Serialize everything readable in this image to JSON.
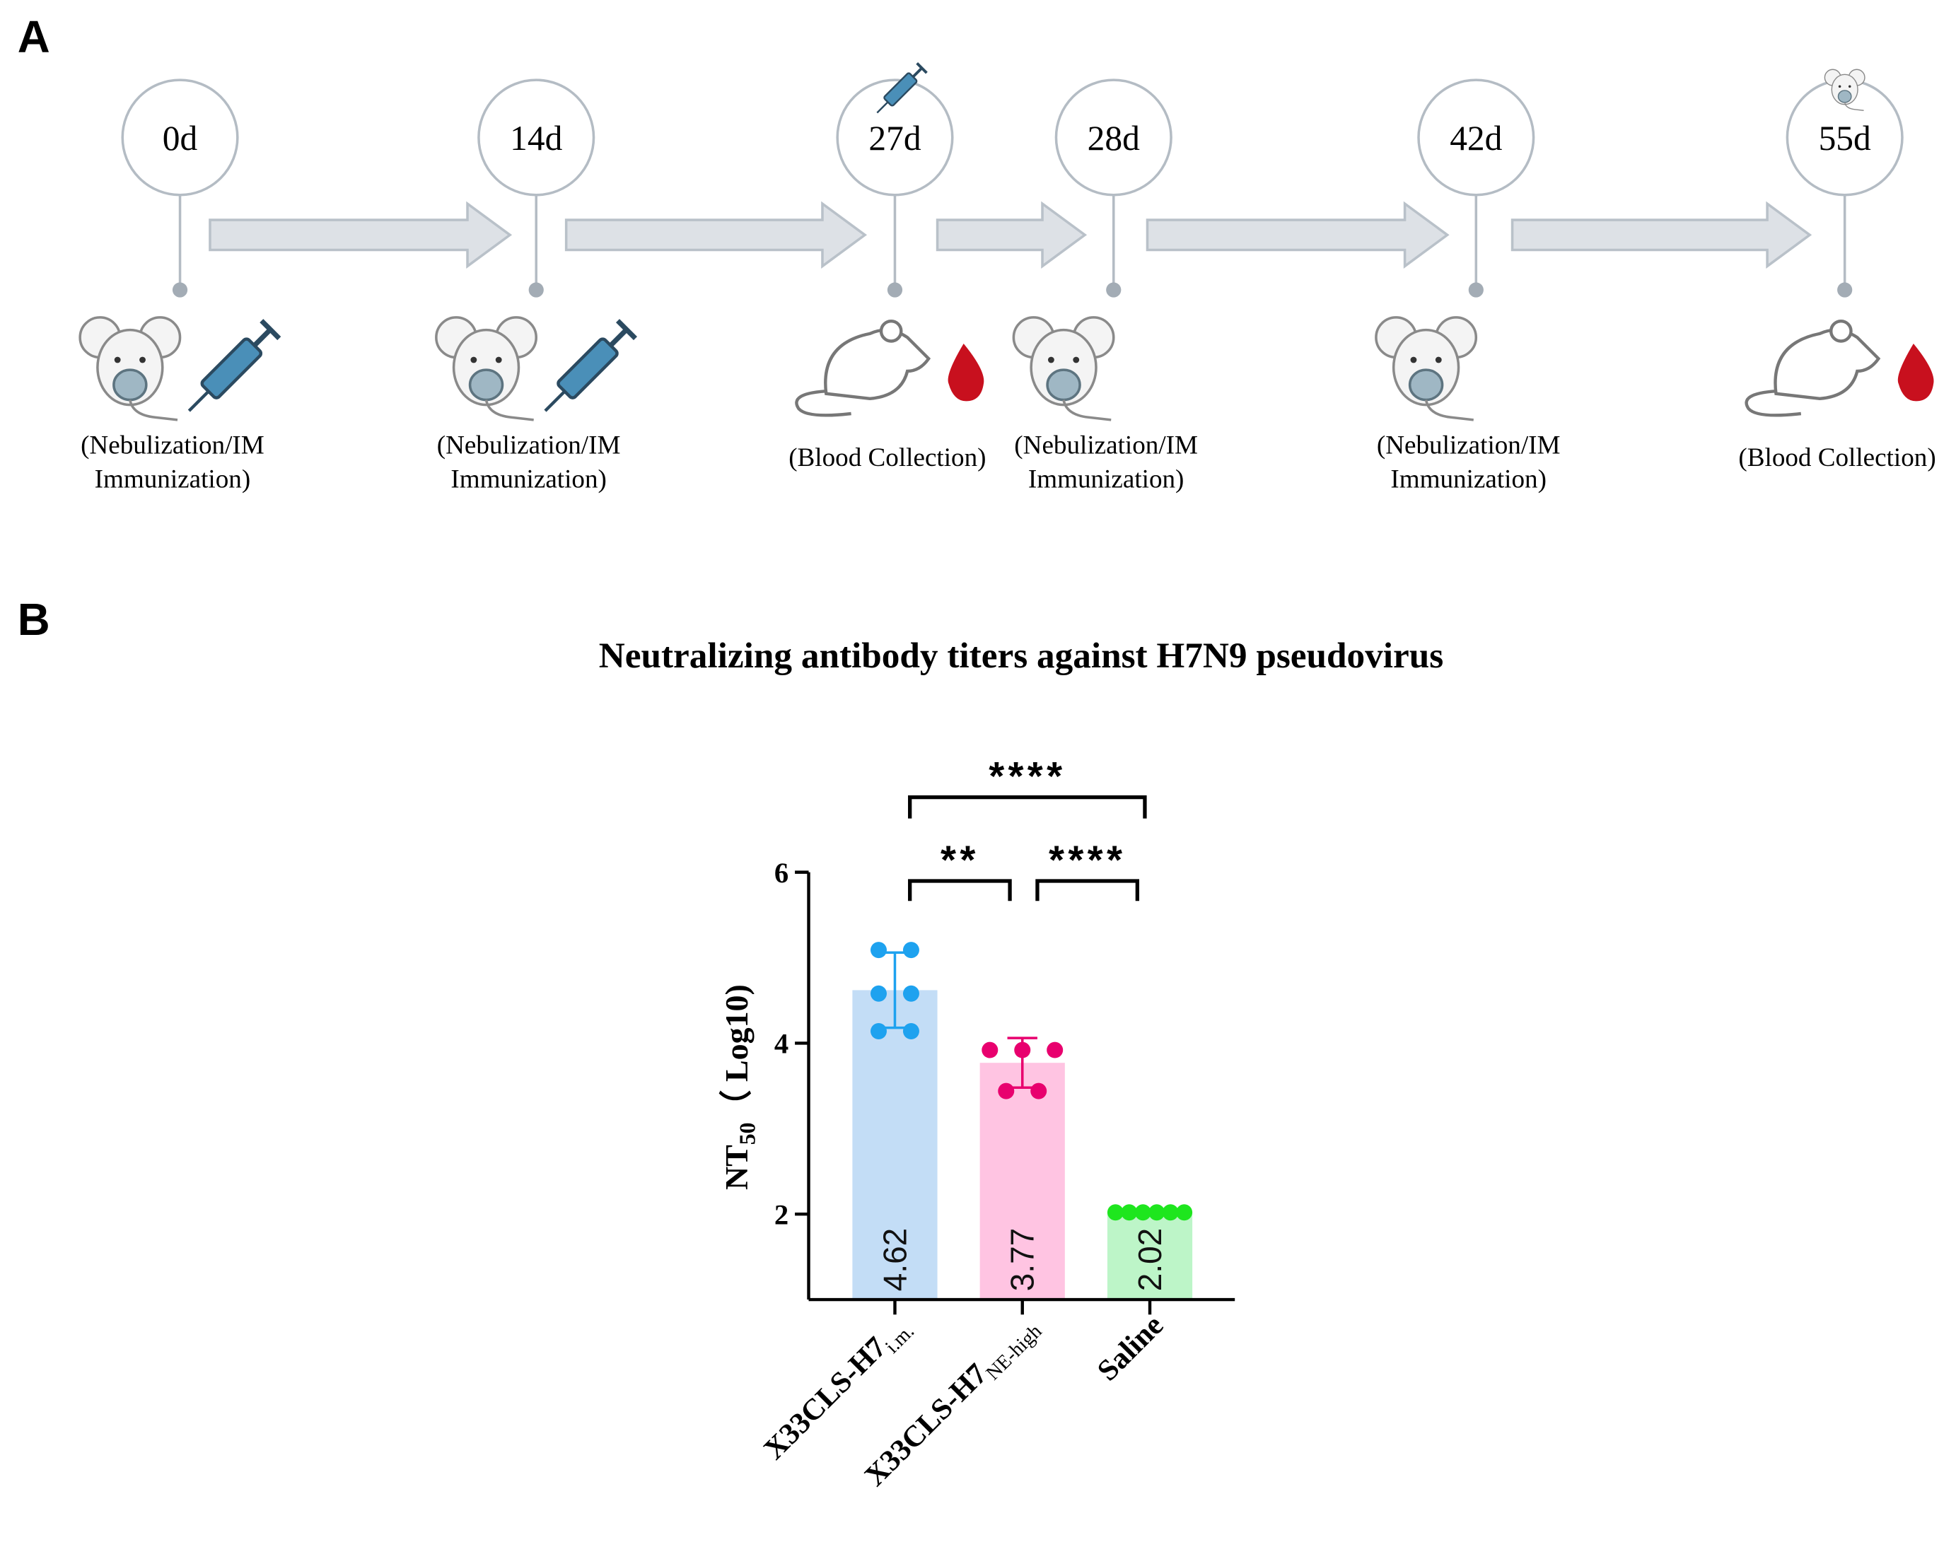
{
  "panel_a": {
    "label": "A",
    "timeline": [
      {
        "day": "0d",
        "caption": [
          "(Nebulization/IM",
          "Immunization)"
        ]
      },
      {
        "day": "14d",
        "caption": [
          "(Nebulization/IM",
          "Immunization)"
        ]
      },
      {
        "day": "27d",
        "caption": [
          "(Blood Collection)"
        ]
      },
      {
        "day": "28d",
        "caption": [
          "(Nebulization/IM",
          "Immunization)"
        ]
      },
      {
        "day": "42d",
        "caption": [
          "(Nebulization/IM",
          "Immunization)"
        ]
      },
      {
        "day": "55d",
        "caption": [
          "(Blood Collection)"
        ]
      }
    ]
  },
  "panel_b": {
    "label": "B"
  },
  "chart_data": {
    "type": "bar",
    "title": "Neutralizing antibody titers against H7N9 pseudovirus",
    "ylabel": {
      "main": "NT",
      "sub": "50",
      "rest": "（ Log10)"
    },
    "categories": [
      "X33CLS-H7",
      "X33CLS-H7",
      "Saline"
    ],
    "category_subscripts": [
      "i.m.",
      "NE-high",
      null
    ],
    "values": [
      4.62,
      3.77,
      2.02
    ],
    "errors": [
      0.44,
      0.29,
      0
    ],
    "colors": [
      "#c3ddf6",
      "#ffc4e2",
      "#bdf5c8"
    ],
    "point_colors": [
      "#1ea2ef",
      "#e8006e",
      "#1ee61e"
    ],
    "points": [
      [
        5.09,
        5.09,
        4.58,
        4.58,
        4.14,
        4.14
      ],
      [
        3.92,
        3.92,
        3.92,
        3.44,
        3.44
      ],
      [
        2.02,
        2.02,
        2.02,
        2.02,
        2.02,
        2.02
      ]
    ],
    "ylim": [
      1,
      6
    ],
    "yticks": [
      2,
      4,
      6
    ],
    "significance": [
      {
        "from": 0,
        "to": 2,
        "label": "****"
      },
      {
        "from": 0,
        "to": 1,
        "label": "**"
      },
      {
        "from": 1,
        "to": 2,
        "label": "****"
      }
    ]
  }
}
